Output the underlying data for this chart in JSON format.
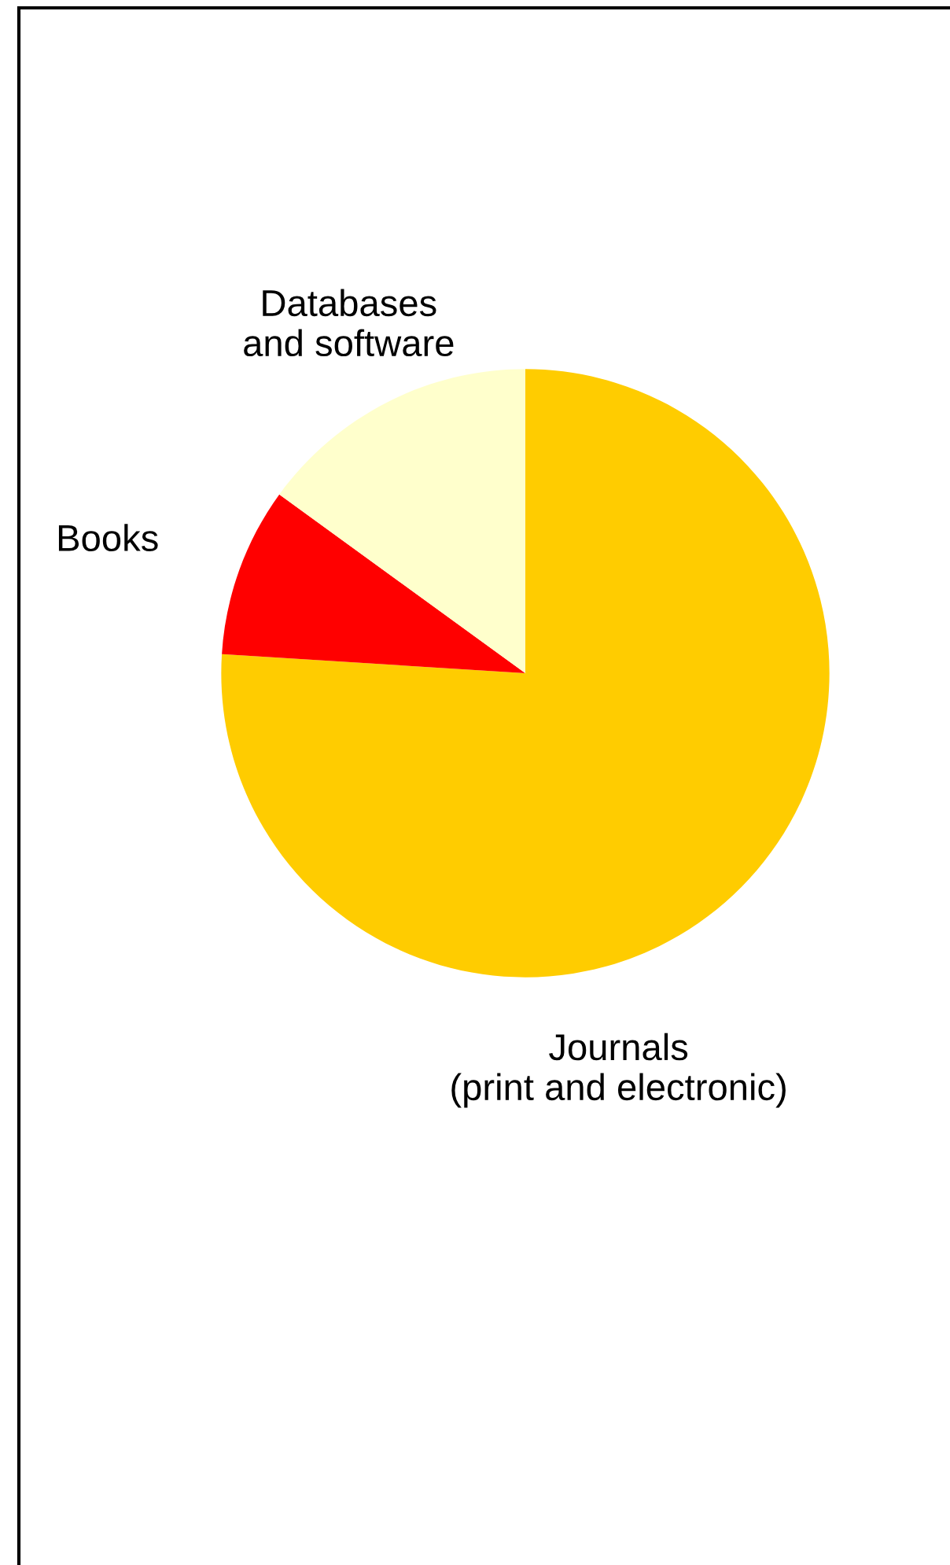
{
  "chart_data": {
    "type": "pie",
    "categories": [
      "Journals\n(print and electronic)",
      "Books",
      "Databases\nand software"
    ],
    "values": [
      76,
      9,
      15
    ],
    "colors": [
      "#ffcc00",
      "#ff0000",
      "#ffffcc"
    ]
  }
}
